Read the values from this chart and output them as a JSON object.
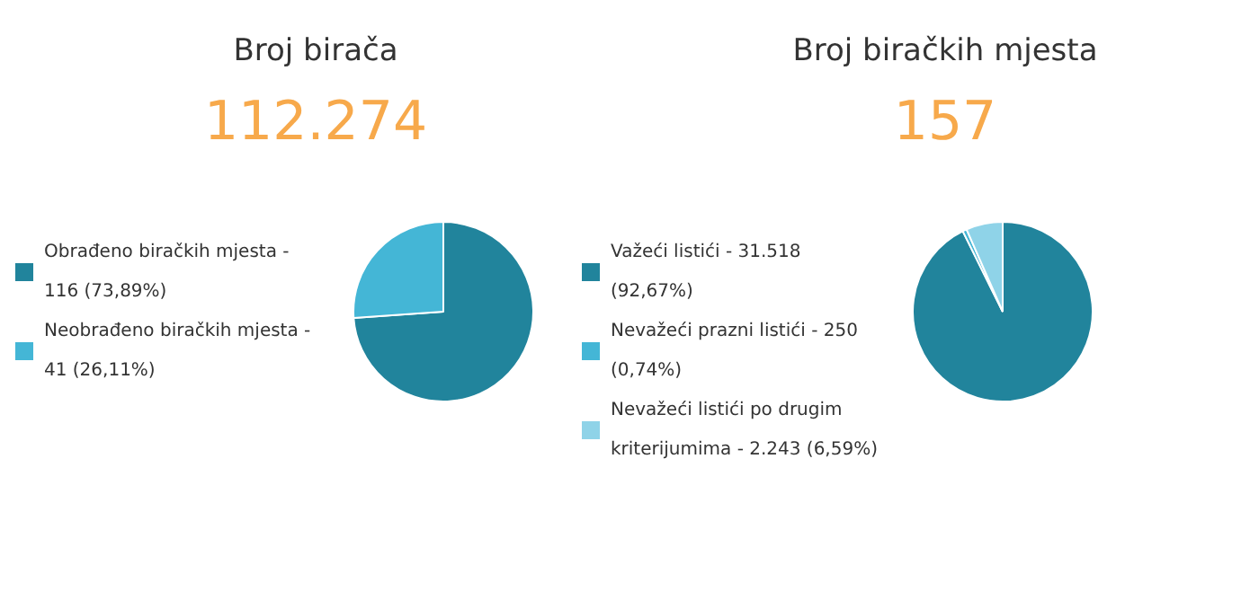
{
  "chart_data": [
    {
      "type": "other",
      "annotations": [
        "Broj birača",
        "112.274",
        "Broj biračkih mjesta",
        "157"
      ],
      "color": "#f7a94b"
    },
    {
      "type": "pie",
      "categories": [
        "Obrađeno biračkih mjesta - 116 (73,89%)",
        "Neobrađeno biračkih mjesta - 41 (26,11%)"
      ],
      "values": [
        73.89,
        26.11
      ],
      "colors": [
        "#21849c",
        "#44b6d6"
      ],
      "legend": "left"
    },
    {
      "type": "pie",
      "categories": [
        "Važeći listići - 31.518 (92,67%)",
        "Nevažeći prazni listići - 250 (0,74%)",
        "Nevažeći listići po drugim kriterijumima - 2.243 (6,59%)"
      ],
      "values": [
        92.67,
        0.74,
        6.59
      ],
      "colors": [
        "#21849c",
        "#44b6d6",
        "#8fd3e8"
      ],
      "legend": "left"
    }
  ]
}
